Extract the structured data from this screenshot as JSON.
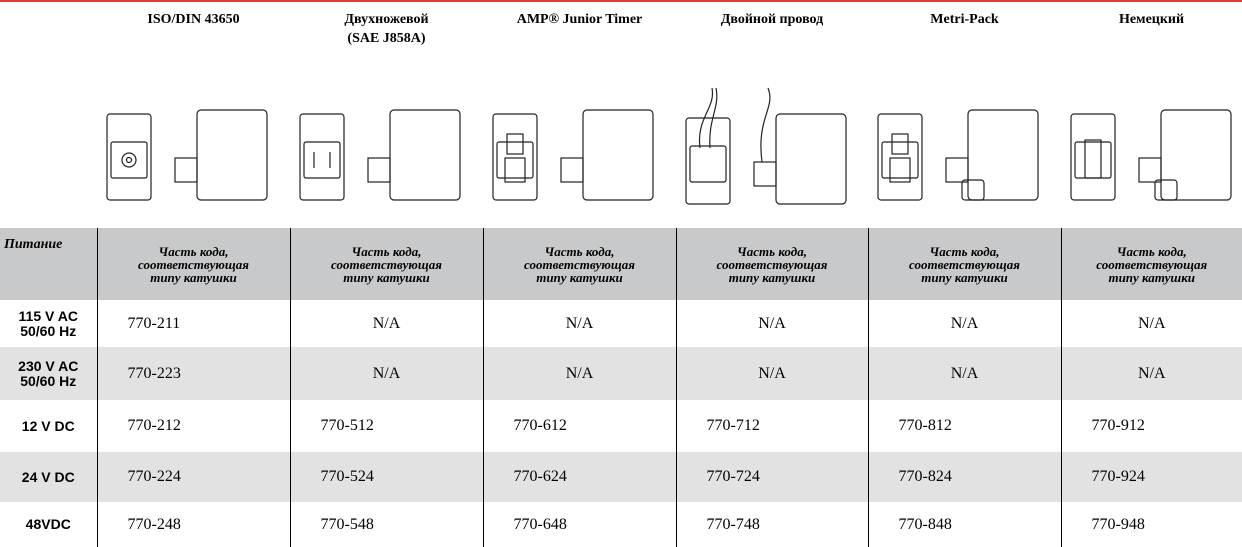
{
  "header": {
    "connectors": [
      [
        "ISO/DIN 43650"
      ],
      [
        "Двухножевой",
        "(SAE J858A)"
      ],
      [
        "AMP® Junior Timer"
      ],
      [
        "Двойной провод"
      ],
      [
        "Metri-Pack"
      ],
      [
        "Немецкий"
      ]
    ]
  },
  "table": {
    "header": [
      "Питание",
      "Часть кода, соответствующая типу катушки",
      "Часть кода, соответствующая типу катушки",
      "Часть кода, соответствующая типу катушки",
      "Часть кода, соответствующая типу катушки",
      "Часть кода, соответствующая типу катушки",
      "Часть кода, соответствующая типу катушки"
    ],
    "rows": [
      [
        "115 V AC 50/60 Hz",
        "770-211",
        "N/A",
        "N/A",
        "N/A",
        "N/A",
        "N/A"
      ],
      [
        "230 V AC 50/60 Hz",
        "770-223",
        "N/A",
        "N/A",
        "N/A",
        "N/A",
        "N/A"
      ],
      [
        "12 V DC",
        "770-212",
        "770-512",
        "770-612",
        "770-712",
        "770-812",
        "770-912"
      ],
      [
        "24 V DC",
        "770-224",
        "770-524",
        "770-624",
        "770-724",
        "770-824",
        "770-924"
      ],
      [
        "48VDC",
        "770-248",
        "770-548",
        "770-648",
        "770-748",
        "770-848",
        "770-948"
      ]
    ]
  }
}
